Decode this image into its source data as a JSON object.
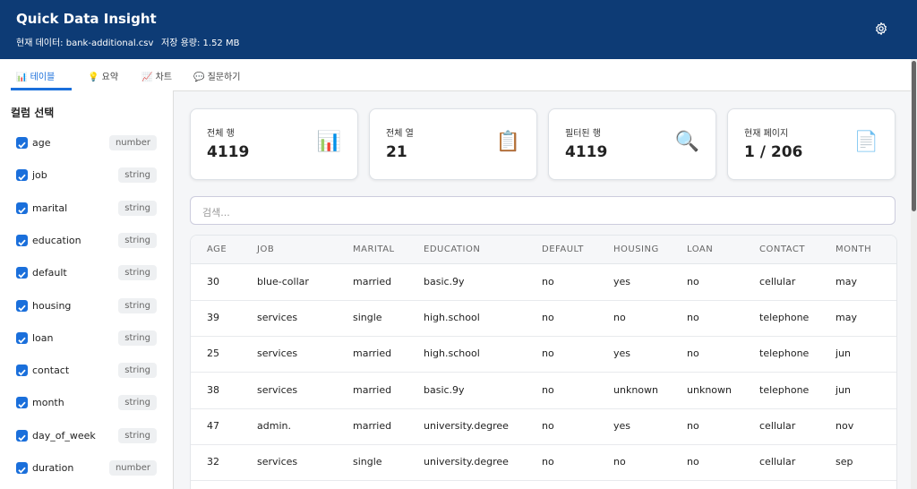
{
  "header": {
    "title": "Quick Data Insight",
    "subtitle": [
      "현재 데이터: bank-additional.csv",
      "저장 용량: 1.52 MB"
    ]
  },
  "tabs": [
    "📊 테이블",
    "💡 요약",
    "📈 차트",
    "💬 질문하기"
  ],
  "active_tab": 0,
  "sidebar": {
    "title": "컬럼 선택",
    "columns": [
      {
        "name": "age",
        "type": "number",
        "checked": true
      },
      {
        "name": "job",
        "type": "string",
        "checked": true
      },
      {
        "name": "marital",
        "type": "string",
        "checked": true
      },
      {
        "name": "education",
        "type": "string",
        "checked": true
      },
      {
        "name": "default",
        "type": "string",
        "checked": true
      },
      {
        "name": "housing",
        "type": "string",
        "checked": true
      },
      {
        "name": "loan",
        "type": "string",
        "checked": true
      },
      {
        "name": "contact",
        "type": "string",
        "checked": true
      },
      {
        "name": "month",
        "type": "string",
        "checked": true
      },
      {
        "name": "day_of_week",
        "type": "string",
        "checked": true
      },
      {
        "name": "duration",
        "type": "number",
        "checked": true
      }
    ]
  },
  "stats": [
    {
      "label": "전체 행",
      "value": 4119,
      "icon": "📊"
    },
    {
      "label": "전체 열",
      "value": 21,
      "icon": "📋"
    },
    {
      "label": "필터된 행",
      "value": 4119,
      "icon": "🔍"
    },
    {
      "label": "현재 페이지",
      "value": "1 / 206",
      "icon": "📄"
    }
  ],
  "search": {
    "placeholder": "검색..."
  },
  "table": {
    "columns": [
      "AGE",
      "JOB",
      "MARITAL",
      "EDUCATION",
      "DEFAULT",
      "HOUSING",
      "LOAN",
      "CONTACT",
      "MONTH"
    ],
    "rows": [
      [
        30,
        "blue-collar",
        "married",
        "basic.9y",
        "no",
        "yes",
        "no",
        "cellular",
        "may"
      ],
      [
        39,
        "services",
        "single",
        "high.school",
        "no",
        "no",
        "no",
        "telephone",
        "may"
      ],
      [
        25,
        "services",
        "married",
        "high.school",
        "no",
        "yes",
        "no",
        "telephone",
        "jun"
      ],
      [
        38,
        "services",
        "married",
        "basic.9y",
        "no",
        "unknown",
        "unknown",
        "telephone",
        "jun"
      ],
      [
        47,
        "admin.",
        "married",
        "university.degree",
        "no",
        "yes",
        "no",
        "cellular",
        "nov"
      ],
      [
        32,
        "services",
        "single",
        "university.degree",
        "no",
        "no",
        "no",
        "cellular",
        "sep"
      ]
    ]
  }
}
